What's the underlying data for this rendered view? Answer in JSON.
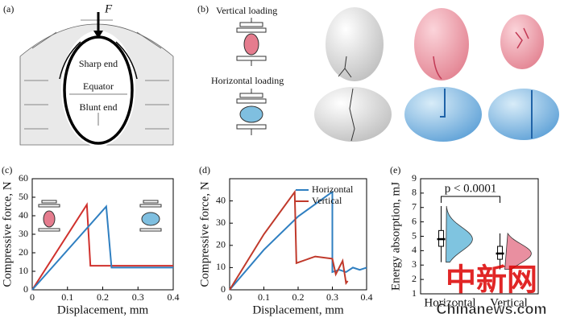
{
  "figure": {
    "panel_a": {
      "label": "(a)",
      "force": "F",
      "sharp_end": "Sharp end",
      "equator": "Equator",
      "blunt_end": "Blunt end"
    },
    "panel_b": {
      "label": "(b)",
      "vertical": "Vertical loading",
      "horizontal": "Horizontal loading"
    },
    "watermark": {
      "chinese": "中新网",
      "site": "Chinanews.com"
    }
  },
  "chart_data": [
    {
      "type": "line",
      "panel_label": "(c)",
      "xlabel": "Displacement, mm",
      "ylabel": "Compressive force, N",
      "xlim": [
        0,
        0.4
      ],
      "xticks": [
        0,
        0.1,
        0.2,
        0.3,
        0.4
      ],
      "ylim": [
        0,
        60
      ],
      "yticks": [
        0,
        10,
        20,
        30,
        40,
        50,
        60
      ],
      "series": [
        {
          "color": "#d0312d",
          "x": [
            0,
            0.155,
            0.165,
            0.4
          ],
          "values": [
            0,
            46,
            13,
            13
          ]
        },
        {
          "color": "#2f7fc1",
          "x": [
            0,
            0.21,
            0.225,
            0.4
          ],
          "values": [
            0,
            45,
            12,
            12
          ]
        }
      ]
    },
    {
      "type": "line",
      "panel_label": "(d)",
      "xlabel": "Displacement, mm",
      "ylabel": "Compressive force, N",
      "xlim": [
        0,
        0.4
      ],
      "xticks": [
        0,
        0.1,
        0.2,
        0.3,
        0.4
      ],
      "ylim": [
        0,
        50
      ],
      "yticks": [
        0,
        10,
        20,
        30,
        40
      ],
      "legend": "upper right",
      "series": [
        {
          "name": "Horizontal",
          "color": "#2f7fc1",
          "x": [
            0,
            0.1,
            0.2,
            0.29,
            0.3,
            0.3,
            0.32,
            0.34,
            0.36,
            0.38,
            0.4
          ],
          "values": [
            0,
            18,
            33,
            43,
            44,
            8,
            9,
            8,
            10,
            9,
            10
          ]
        },
        {
          "name": "Vertical",
          "color": "#c0392b",
          "x": [
            0,
            0.1,
            0.19,
            0.195,
            0.25,
            0.3,
            0.31,
            0.33,
            0.34,
            0.345
          ],
          "values": [
            0,
            25,
            44,
            12,
            15,
            14,
            7,
            13,
            3,
            4
          ]
        }
      ]
    },
    {
      "type": "box",
      "panel_label": "(e)",
      "ylabel": "Energy absorption, mJ",
      "categories": [
        "Horizontal",
        "Vertical"
      ],
      "colors": [
        "#7fc4e0",
        "#e98fa0"
      ],
      "min": [
        3.2,
        2.7
      ],
      "q1": [
        4.3,
        3.4
      ],
      "median": [
        4.8,
        3.8
      ],
      "q3": [
        5.4,
        4.3
      ],
      "max": [
        7.1,
        5.2
      ],
      "ylim": [
        1,
        9
      ],
      "yticks": [
        1,
        2,
        3,
        4,
        5,
        6,
        7,
        8,
        9
      ],
      "annotation": "p < 0.0001"
    }
  ]
}
